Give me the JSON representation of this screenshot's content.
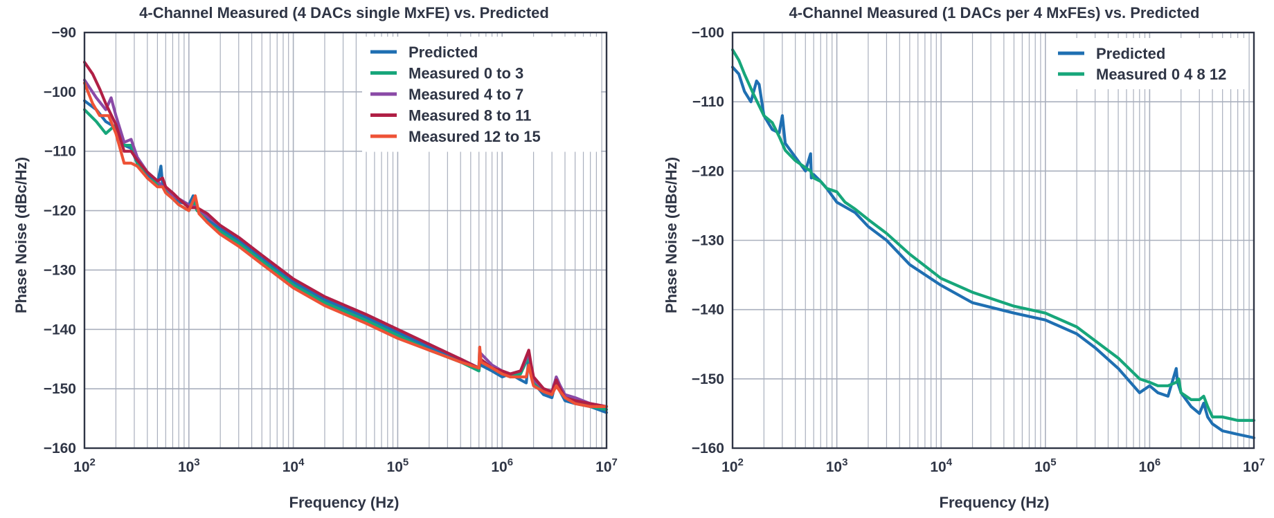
{
  "chart_data": [
    {
      "type": "line",
      "title": "4-Channel Measured (4 DACs single MxFE) vs. Predicted",
      "xlabel": "Frequency (Hz)",
      "ylabel": "Phase Noise (dBc/Hz)",
      "xscale": "log",
      "xlim": [
        100,
        10000000
      ],
      "ylim": [
        -160,
        -90
      ],
      "xticks": [
        100,
        1000,
        10000,
        100000,
        1000000,
        10000000
      ],
      "xtick_labels": [
        [
          "10",
          "2"
        ],
        [
          "10",
          "3"
        ],
        [
          "10",
          "4"
        ],
        [
          "10",
          "5"
        ],
        [
          "10",
          "6"
        ],
        [
          "10",
          "7"
        ]
      ],
      "yticks": [
        -90,
        -100,
        -110,
        -120,
        -130,
        -140,
        -150,
        -160
      ],
      "ytick_labels": [
        "−90",
        "−100",
        "−110",
        "−120",
        "−130",
        "−140",
        "−150",
        "−160"
      ],
      "grid": true,
      "legend": "top-right",
      "series": [
        {
          "name": "Predicted",
          "color": "#1f6fb2",
          "x": [
            100,
            130,
            160,
            200,
            240,
            280,
            320,
            400,
            500,
            540,
            560,
            600,
            700,
            800,
            1000,
            1100,
            1200,
            1300,
            1500,
            2000,
            3000,
            5000,
            10000,
            20000,
            50000,
            100000,
            200000,
            400000,
            600000,
            610000,
            620000,
            800000,
            1000000,
            1200000,
            1500000,
            1700000,
            1800000,
            1900000,
            2000000,
            2500000,
            3000000,
            3300000,
            3600000,
            4000000,
            5000000,
            7000000,
            10000000
          ],
          "y": [
            -101.5,
            -103,
            -105,
            -106,
            -109,
            -109.5,
            -112,
            -114,
            -115.5,
            -112.5,
            -115.5,
            -116,
            -117.5,
            -118.5,
            -119,
            -117.5,
            -119.5,
            -120,
            -121.5,
            -123,
            -125,
            -128,
            -132,
            -135,
            -138,
            -140.5,
            -143,
            -145,
            -146.5,
            -143,
            -146,
            -147,
            -148,
            -147.5,
            -148.5,
            -149,
            -145,
            -147.5,
            -149,
            -151,
            -151.5,
            -148.5,
            -150.5,
            -152,
            -152.5,
            -153,
            -154
          ]
        },
        {
          "name": "Measured 0 to 3",
          "color": "#17a67a",
          "x": [
            100,
            130,
            160,
            200,
            240,
            280,
            320,
            400,
            500,
            560,
            600,
            700,
            800,
            1000,
            1100,
            1200,
            1300,
            1500,
            2000,
            3000,
            5000,
            10000,
            20000,
            50000,
            100000,
            200000,
            400000,
            600000,
            620000,
            800000,
            1000000,
            1200000,
            1500000,
            1800000,
            1900000,
            2000000,
            2500000,
            3000000,
            3300000,
            3600000,
            4000000,
            5000000,
            7000000,
            10000000
          ],
          "y": [
            -103,
            -105,
            -107,
            -105.5,
            -109,
            -109,
            -112,
            -114.5,
            -115.5,
            -116,
            -116.5,
            -118,
            -119,
            -120,
            -118.5,
            -120,
            -120.5,
            -122,
            -123.5,
            -125.5,
            -128.5,
            -132.5,
            -135.5,
            -138.5,
            -141,
            -143.5,
            -145.5,
            -147,
            -145,
            -146.5,
            -147.5,
            -148,
            -147.5,
            -144.5,
            -147.5,
            -149,
            -150.5,
            -151,
            -149,
            -150,
            -151.5,
            -152,
            -153,
            -153.5
          ]
        },
        {
          "name": "Measured 4 to 7",
          "color": "#8a4aa6",
          "x": [
            100,
            130,
            160,
            180,
            200,
            240,
            280,
            320,
            400,
            500,
            560,
            600,
            700,
            800,
            1000,
            1200,
            1500,
            2000,
            3000,
            5000,
            10000,
            20000,
            50000,
            100000,
            200000,
            400000,
            600000,
            620000,
            800000,
            1000000,
            1200000,
            1500000,
            1800000,
            1900000,
            2000000,
            2500000,
            3000000,
            3300000,
            3600000,
            4000000,
            5000000,
            7000000,
            10000000
          ],
          "y": [
            -98,
            -101,
            -103,
            -101,
            -104,
            -108.5,
            -108,
            -111,
            -113.5,
            -115,
            -116,
            -116,
            -117.5,
            -118,
            -119,
            -119.5,
            -121,
            -122.5,
            -124.5,
            -127.5,
            -131.5,
            -134.5,
            -137.5,
            -140,
            -142.5,
            -145,
            -146.5,
            -144,
            -146,
            -147,
            -147.5,
            -147,
            -144,
            -146.5,
            -148.5,
            -150,
            -150.5,
            -148,
            -149.5,
            -151,
            -151.5,
            -152.5,
            -153
          ]
        },
        {
          "name": "Measured 8 to 11",
          "color": "#b01f45",
          "x": [
            100,
            120,
            140,
            160,
            200,
            240,
            280,
            320,
            400,
            500,
            560,
            600,
            700,
            800,
            1000,
            1200,
            1500,
            2000,
            3000,
            5000,
            10000,
            20000,
            50000,
            100000,
            200000,
            400000,
            600000,
            620000,
            800000,
            1000000,
            1200000,
            1500000,
            1800000,
            1900000,
            2000000,
            2500000,
            3000000,
            3300000,
            3600000,
            4000000,
            5000000,
            7000000,
            10000000
          ],
          "y": [
            -95,
            -97,
            -99.5,
            -102,
            -105.5,
            -110,
            -110,
            -111.5,
            -113.5,
            -115,
            -114.5,
            -116,
            -117,
            -118,
            -119.5,
            -119.5,
            -120.5,
            -122.5,
            -124.5,
            -127.5,
            -131.5,
            -134.5,
            -137.5,
            -140,
            -142.5,
            -145,
            -146.5,
            -145,
            -146.5,
            -147,
            -147.5,
            -147,
            -143.5,
            -146,
            -148,
            -150,
            -150.5,
            -148.5,
            -150,
            -151.5,
            -152,
            -152.5,
            -153
          ]
        },
        {
          "name": "Measured 12 to 15",
          "color": "#ee5236",
          "x": [
            100,
            120,
            140,
            170,
            200,
            240,
            280,
            320,
            400,
            500,
            560,
            600,
            700,
            800,
            1000,
            1150,
            1250,
            1500,
            2000,
            3000,
            5000,
            10000,
            20000,
            50000,
            100000,
            200000,
            400000,
            600000,
            610000,
            630000,
            800000,
            1000000,
            1200000,
            1500000,
            1700000,
            1800000,
            1900000,
            2000000,
            2500000,
            3000000,
            3300000,
            3600000,
            4000000,
            5000000,
            7000000,
            10000000
          ],
          "y": [
            -98.5,
            -102,
            -104,
            -104,
            -107,
            -112,
            -112,
            -112.5,
            -114.5,
            -116,
            -116,
            -117,
            -118,
            -119,
            -120,
            -117.5,
            -120.5,
            -122,
            -124,
            -126,
            -129,
            -133,
            -136,
            -139,
            -141.5,
            -143.5,
            -145.5,
            -146.5,
            -143,
            -145.5,
            -146.5,
            -147.5,
            -148,
            -148,
            -148,
            -146,
            -148,
            -149.5,
            -150.5,
            -151,
            -149.5,
            -150.5,
            -151.5,
            -152.5,
            -153,
            -153
          ]
        }
      ]
    },
    {
      "type": "line",
      "title": "4-Channel Measured (1 DACs per 4 MxFEs) vs. Predicted",
      "xlabel": "Frequency (Hz)",
      "ylabel": "Phase Noise (dBc/Hz)",
      "xscale": "log",
      "xlim": [
        100,
        10000000
      ],
      "ylim": [
        -160,
        -100
      ],
      "xticks": [
        100,
        1000,
        10000,
        100000,
        1000000,
        10000000
      ],
      "xtick_labels": [
        [
          "10",
          "2"
        ],
        [
          "10",
          "3"
        ],
        [
          "10",
          "4"
        ],
        [
          "10",
          "5"
        ],
        [
          "10",
          "6"
        ],
        [
          "10",
          "7"
        ]
      ],
      "yticks": [
        -100,
        -110,
        -120,
        -130,
        -140,
        -150,
        -160
      ],
      "ytick_labels": [
        "−100",
        "−110",
        "−120",
        "−130",
        "−140",
        "−150",
        "−160"
      ],
      "grid": true,
      "legend": "top-right",
      "series": [
        {
          "name": "Predicted",
          "color": "#1f6fb2",
          "x": [
            100,
            115,
            130,
            150,
            170,
            180,
            200,
            240,
            280,
            300,
            320,
            400,
            500,
            560,
            570,
            600,
            700,
            800,
            1000,
            1500,
            2000,
            3000,
            5000,
            10000,
            20000,
            50000,
            100000,
            200000,
            300000,
            500000,
            800000,
            1000000,
            1200000,
            1500000,
            1800000,
            1850000,
            1900000,
            2000000,
            2500000,
            3000000,
            3300000,
            3600000,
            4000000,
            5000000,
            7000000,
            10000000
          ],
          "y": [
            -105,
            -106,
            -108.5,
            -110,
            -107,
            -107.5,
            -112,
            -114,
            -114.5,
            -112,
            -116,
            -118,
            -120,
            -117.5,
            -121,
            -120.5,
            -121.5,
            -122.5,
            -124.5,
            -126,
            -128,
            -130,
            -133.5,
            -136.5,
            -139,
            -140.5,
            -141.5,
            -143.5,
            -145.5,
            -148.5,
            -152,
            -151,
            -152,
            -152.5,
            -148.5,
            -150.5,
            -151,
            -152,
            -154,
            -155,
            -153.5,
            -155.5,
            -156.5,
            -157.5,
            -158,
            -158.5
          ]
        },
        {
          "name": "Measured 0 4 8 12",
          "color": "#17a67a",
          "x": [
            100,
            115,
            130,
            160,
            200,
            240,
            280,
            320,
            400,
            500,
            560,
            600,
            700,
            800,
            1000,
            1200,
            1500,
            2000,
            3000,
            5000,
            10000,
            20000,
            50000,
            100000,
            200000,
            300000,
            500000,
            800000,
            1000000,
            1200000,
            1500000,
            1800000,
            1900000,
            2000000,
            2500000,
            3000000,
            3300000,
            3600000,
            4000000,
            5000000,
            7000000,
            10000000
          ],
          "y": [
            -102.5,
            -104,
            -106,
            -109,
            -112,
            -113,
            -115,
            -117,
            -118.5,
            -119.5,
            -120,
            -121,
            -121.5,
            -122.5,
            -123,
            -124.5,
            -125.5,
            -127,
            -129,
            -132,
            -135.5,
            -137.5,
            -139.5,
            -140.5,
            -142.5,
            -144.5,
            -147,
            -150,
            -150.5,
            -151,
            -151,
            -150.5,
            -150,
            -152,
            -153,
            -153,
            -152.5,
            -154,
            -155.5,
            -155.5,
            -156,
            -156
          ]
        }
      ]
    }
  ]
}
